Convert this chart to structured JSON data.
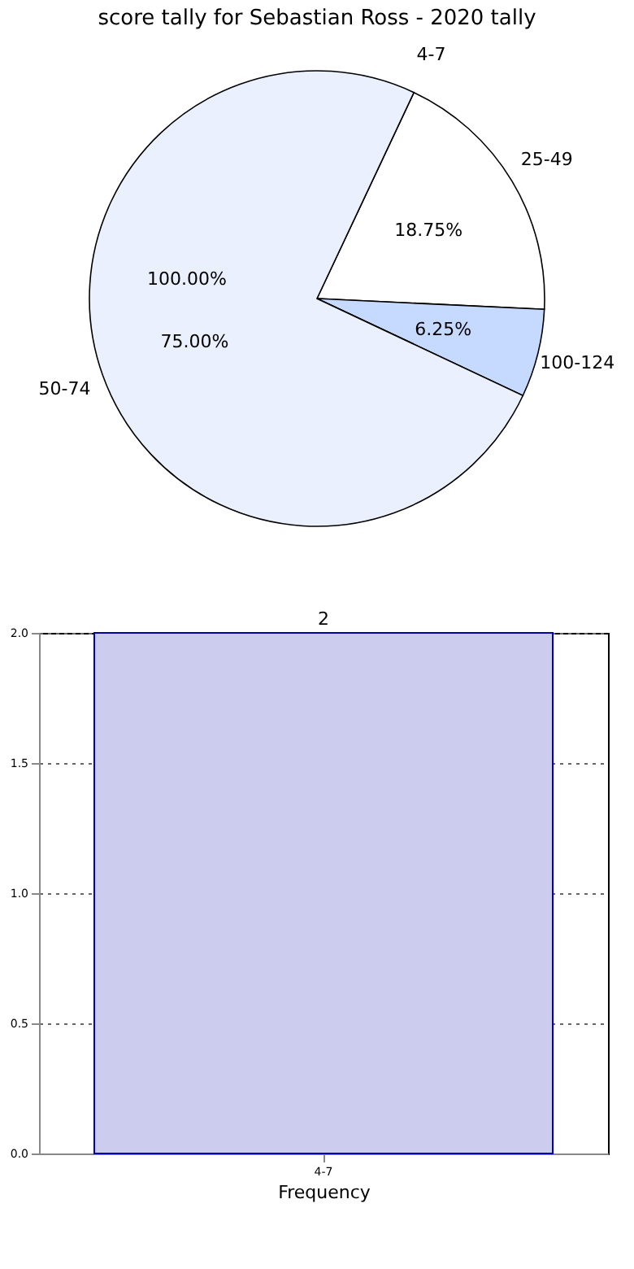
{
  "chart_data": [
    {
      "type": "pie",
      "title": "score tally for Sebastian Ross - 2020 tally",
      "categories": [
        "4-7",
        "25-49",
        "100-124",
        "50-74"
      ],
      "values": [
        0,
        18.75,
        6.25,
        75
      ],
      "value_labels": [
        null,
        "18.75%",
        "6.25%",
        "75.00%"
      ],
      "annotations": [
        "100.00%"
      ],
      "colors": [
        "#ffffff",
        "#ffffff",
        "#c6d9fe",
        "#eaf0fe"
      ]
    },
    {
      "type": "bar",
      "categories": [
        "4-7"
      ],
      "values": [
        2
      ],
      "color": "#ccccee",
      "xlabel": "Frequency",
      "ylim": [
        0,
        2
      ],
      "yticks": [
        {
          "value": 0,
          "label": "0.0"
        },
        {
          "value": 0.5,
          "label": "0.5"
        },
        {
          "value": 1,
          "label": "1.0"
        },
        {
          "value": 1.5,
          "label": "1.5"
        },
        {
          "value": 2,
          "label": "2.0"
        }
      ],
      "grid": true,
      "data_labels": true
    }
  ]
}
